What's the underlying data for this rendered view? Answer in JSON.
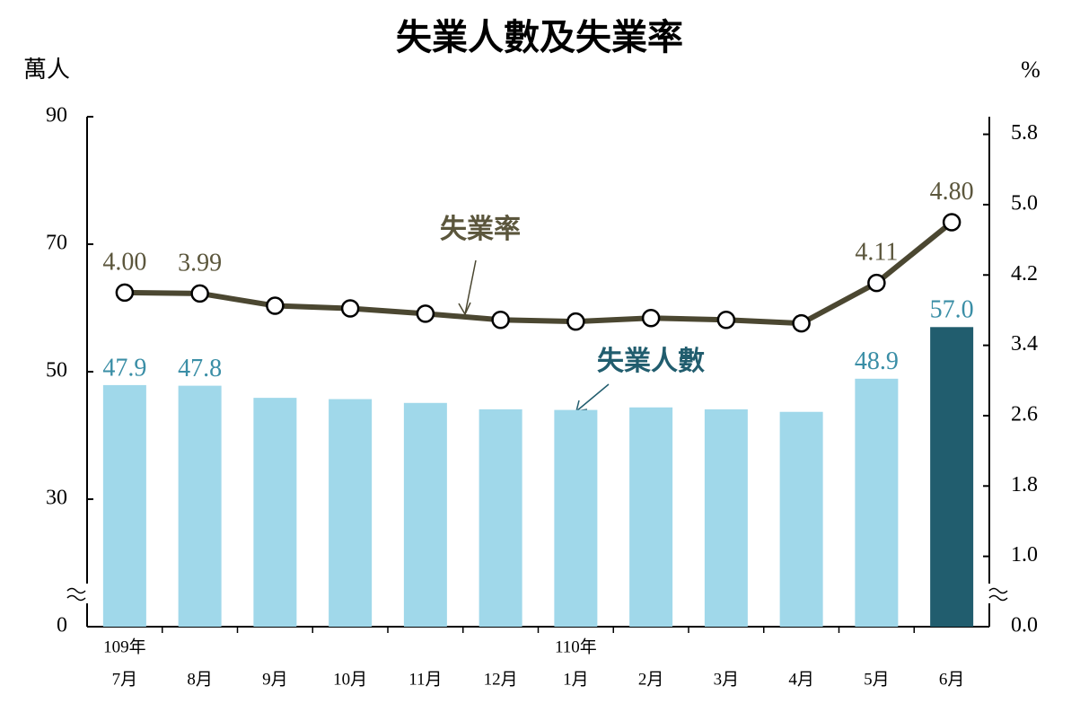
{
  "chart_data": {
    "type": "combo",
    "title": "失業人數及失業率",
    "y_label": "萬人",
    "y2_label": "%",
    "categories": [
      "7月",
      "8月",
      "9月",
      "10月",
      "11月",
      "12月",
      "1月",
      "2月",
      "3月",
      "4月",
      "5月",
      "6月"
    ],
    "category_years": [
      "109年",
      null,
      null,
      null,
      null,
      null,
      "110年",
      null,
      null,
      null,
      null,
      null
    ],
    "series": [
      {
        "name": "失業人數",
        "type": "bar",
        "color": "#a0d8ea",
        "colors": [
          "#a0d8ea",
          "#a0d8ea",
          "#a0d8ea",
          "#a0d8ea",
          "#a0d8ea",
          "#a0d8ea",
          "#a0d8ea",
          "#a0d8ea",
          "#a0d8ea",
          "#a0d8ea",
          "#a0d8ea",
          "#215d6e"
        ],
        "label_color": "#3a8ea6",
        "values": [
          47.9,
          47.8,
          45.9,
          45.7,
          45.1,
          44.1,
          44.0,
          44.4,
          44.1,
          43.7,
          48.9,
          57.0
        ],
        "value_labels": [
          "47.9",
          "47.8",
          null,
          null,
          null,
          null,
          null,
          null,
          null,
          null,
          "48.9",
          "57.0"
        ]
      },
      {
        "name": "失業率",
        "type": "line",
        "axis": "y2",
        "color": "#4b4731",
        "label_color": "#5b563c",
        "values": [
          4.0,
          3.99,
          3.85,
          3.82,
          3.76,
          3.69,
          3.67,
          3.71,
          3.69,
          3.65,
          4.11,
          4.8
        ],
        "value_labels": [
          "4.00",
          "3.99",
          null,
          null,
          null,
          null,
          null,
          null,
          null,
          null,
          "4.11",
          "4.80"
        ]
      }
    ],
    "ylim": [
      0,
      90
    ],
    "yticks": [
      0,
      30,
      50,
      70,
      90
    ],
    "y2lim": [
      0,
      6.0
    ],
    "y2ticks": [
      {
        "value": 0,
        "label": "0.0"
      },
      {
        "value": 1,
        "label": "1.0"
      },
      1.8,
      2.6,
      3.4,
      4.2,
      {
        "value": 5,
        "label": "5.0"
      },
      5.8
    ],
    "axis_break": true
  }
}
